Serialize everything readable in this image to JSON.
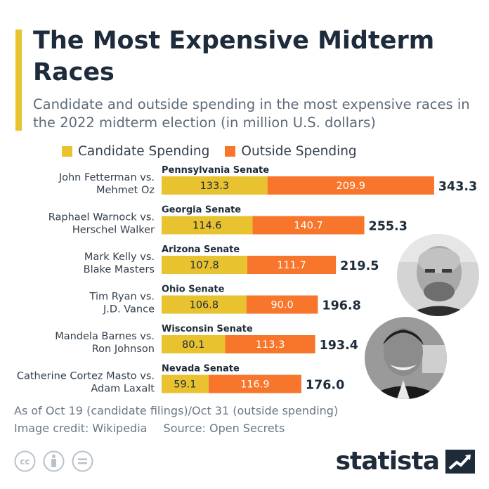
{
  "title": "The Most Expensive Midterm Races",
  "subtitle": "Candidate and outside spending in the most expensive races in the 2022 midterm election (in million U.S. dollars)",
  "colors": {
    "candidate": "#e8c22f",
    "outside": "#f7762c",
    "accent": "#e8c22f",
    "text_dark": "#1d2b3a",
    "text_gray": "#5c6a78"
  },
  "chart_data": {
    "type": "bar",
    "orientation": "horizontal",
    "stacked": true,
    "title": "The Most Expensive Midterm Races",
    "subtitle": "Candidate and outside spending in the most expensive races in the 2022 midterm election (in million U.S. dollars)",
    "legend_position": "top",
    "grid": false,
    "xlim": [
      0,
      343.3
    ],
    "categories": [
      {
        "race": "Pennsylvania Senate",
        "candidates": [
          "John Fetterman vs.",
          "Mehmet Oz"
        ],
        "total": "343.3"
      },
      {
        "race": "Georgia Senate",
        "candidates": [
          "Raphael Warnock vs.",
          "Herschel Walker"
        ],
        "total": "255.3"
      },
      {
        "race": "Arizona Senate",
        "candidates": [
          "Mark Kelly vs.",
          "Blake Masters"
        ],
        "total": "219.5"
      },
      {
        "race": "Ohio Senate",
        "candidates": [
          "Tim Ryan vs.",
          "J.D. Vance"
        ],
        "total": "196.8"
      },
      {
        "race": "Wisconsin Senate",
        "candidates": [
          "Mandela Barnes vs.",
          "Ron Johnson"
        ],
        "total": "193.4"
      },
      {
        "race": "Nevada Senate",
        "candidates": [
          "Catherine Cortez Masto vs.",
          "Adam Laxalt"
        ],
        "total": "176.0"
      }
    ],
    "series": [
      {
        "name": "Candidate Spending",
        "color": "#e8c22f",
        "values": [
          133.3,
          114.6,
          107.8,
          106.8,
          80.1,
          59.1
        ],
        "labels": [
          "133.3",
          "114.6",
          "107.8",
          "106.8",
          "80.1",
          "59.1"
        ]
      },
      {
        "name": "Outside Spending",
        "color": "#f7762c",
        "values": [
          209.9,
          140.7,
          111.7,
          90.0,
          113.3,
          116.9
        ],
        "labels": [
          "209.9",
          "140.7",
          "111.7",
          "90.0",
          "113.3",
          "116.9"
        ]
      }
    ]
  },
  "footer": {
    "note": "As of Oct 19 (candidate filings)/Oct 31 (outside spending)",
    "credit": "Image credit: Wikipedia",
    "source": "Source: Open Secrets",
    "brand": "statista"
  },
  "icons": {
    "license": [
      "creative-commons-icon",
      "attribution-icon",
      "no-derivatives-icon"
    ],
    "photos": [
      "portrait-fetterman",
      "portrait-oz"
    ]
  }
}
